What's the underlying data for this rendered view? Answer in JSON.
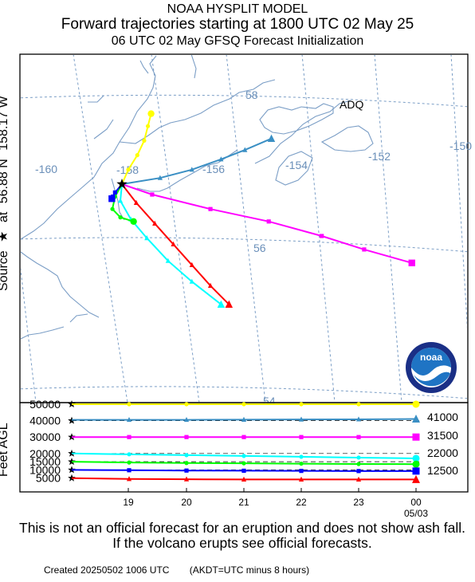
{
  "header": {
    "model": "NOAA HYSPLIT MODEL",
    "title": "Forward trajectories starting at 1800 UTC 02 May 25",
    "subtitle": "06 UTC 02 May    GFSQ  Forecast Initialization"
  },
  "side_label": {
    "source": "Source",
    "at": "at",
    "lat": "56.88 N",
    "lon": "158.17 W"
  },
  "map": {
    "place_label": "ADQ",
    "lon_labels": [
      "-160",
      "-158",
      "-156",
      "-154",
      "-152",
      "-150"
    ],
    "lat_labels": [
      "58",
      "56",
      "54"
    ],
    "colors": {
      "grid": "#7b9ec6",
      "coast": "#7b9ec6",
      "label": "#6a8fb9"
    }
  },
  "chart_data": [
    {
      "type": "line",
      "title": "Forward trajectories starting at 1800 UTC 02 May 25",
      "xlabel": "",
      "ylabel": "",
      "source": {
        "lat": 56.88,
        "lon": -158.17
      },
      "series": [
        {
          "color": "#ffff00",
          "marker": "circle",
          "points": [
            [
              -158.17,
              56.88
            ],
            [
              -158.05,
              57.02
            ],
            [
              -157.88,
              57.16
            ],
            [
              -157.75,
              57.3
            ],
            [
              -157.68,
              57.44
            ],
            [
              -157.62,
              57.56
            ]
          ]
        },
        {
          "color": "#3a8fc4",
          "marker": "triangle",
          "points": [
            [
              -158.17,
              56.88
            ],
            [
              -157.45,
              56.94
            ],
            [
              -156.85,
              57.02
            ],
            [
              -156.3,
              57.12
            ],
            [
              -155.85,
              57.21
            ],
            [
              -155.35,
              57.32
            ]
          ]
        },
        {
          "color": "#ff00ff",
          "marker": "square",
          "points": [
            [
              -158.17,
              56.88
            ],
            [
              -157.6,
              56.78
            ],
            [
              -156.5,
              56.64
            ],
            [
              -155.4,
              56.52
            ],
            [
              -154.4,
              56.38
            ],
            [
              -153.6,
              56.25
            ],
            [
              -152.7,
              56.12
            ]
          ]
        },
        {
          "color": "#00ffff",
          "marker": "triangle",
          "points": [
            [
              -158.17,
              56.88
            ],
            [
              -158.2,
              56.72
            ],
            [
              -158.0,
              56.54
            ],
            [
              -157.7,
              56.36
            ],
            [
              -157.3,
              56.14
            ],
            [
              -156.85,
              55.94
            ],
            [
              -156.3,
              55.72
            ]
          ]
        },
        {
          "color": "#ff0000",
          "marker": "triangle",
          "points": [
            [
              -158.17,
              56.88
            ],
            [
              -157.9,
              56.7
            ],
            [
              -157.55,
              56.5
            ],
            [
              -157.2,
              56.3
            ],
            [
              -156.85,
              56.1
            ],
            [
              -156.5,
              55.9
            ],
            [
              -156.15,
              55.72
            ]
          ]
        },
        {
          "color": "#00ff00",
          "marker": "circle",
          "points": [
            [
              -158.17,
              56.88
            ],
            [
              -158.3,
              56.76
            ],
            [
              -158.35,
              56.64
            ],
            [
              -158.2,
              56.56
            ],
            [
              -157.95,
              56.52
            ]
          ]
        },
        {
          "color": "#0000ff",
          "marker": "square",
          "points": [
            [
              -158.17,
              56.88
            ],
            [
              -158.3,
              56.8
            ],
            [
              -158.34,
              56.76
            ],
            [
              -158.36,
              56.74
            ]
          ]
        }
      ]
    },
    {
      "type": "line",
      "xlabel": "",
      "ylabel": "Feet AGL",
      "y_ticks": [
        5000,
        10000,
        15000,
        20000,
        30000,
        40000,
        50000
      ],
      "ylim": [
        0,
        50000
      ],
      "x_ticks": [
        "19",
        "20",
        "21",
        "22",
        "23",
        "00"
      ],
      "x_date": "05/03",
      "right_labels": [
        "41000",
        "31500",
        "22000",
        "12500"
      ],
      "series": [
        {
          "color": "#ffff00",
          "marker": "circle",
          "values": [
            50000,
            50000,
            50000,
            50000,
            50000,
            50000,
            50000
          ]
        },
        {
          "color": "#3a8fc4",
          "marker": "triangle",
          "values": [
            40500,
            40500,
            40500,
            40600,
            40700,
            40800,
            41000
          ]
        },
        {
          "color": "#ff00ff",
          "marker": "square",
          "values": [
            30000,
            30000,
            30000,
            30000,
            30000,
            30000,
            30000
          ]
        },
        {
          "color": "#00ffff",
          "marker": "circle",
          "values": [
            20000,
            19500,
            19000,
            18500,
            18000,
            17500,
            17000
          ]
        },
        {
          "color": "#00ff00",
          "marker": "circle",
          "values": [
            15000,
            14500,
            14200,
            14000,
            13800,
            13600,
            13500
          ]
        },
        {
          "color": "#0000ff",
          "marker": "square",
          "values": [
            10000,
            9800,
            9600,
            9500,
            9400,
            9300,
            9300
          ]
        },
        {
          "color": "#ff0000",
          "marker": "triangle",
          "values": [
            5000,
            4500,
            4300,
            4200,
            4200,
            4200,
            4200
          ]
        }
      ]
    }
  ],
  "disclaimer": "This is not an official forecast for an eruption and does not show ash fall. If the volcano erupts see official forecasts.",
  "footer": {
    "created": "Created 20250502 1006 UTC",
    "timezone": "(AKDT=UTC minus 8 hours)"
  },
  "logo": {
    "text": "noaa",
    "arc_text": "NATIONAL OCEANIC AND ATMOSPHERIC ADMINISTRATION"
  }
}
